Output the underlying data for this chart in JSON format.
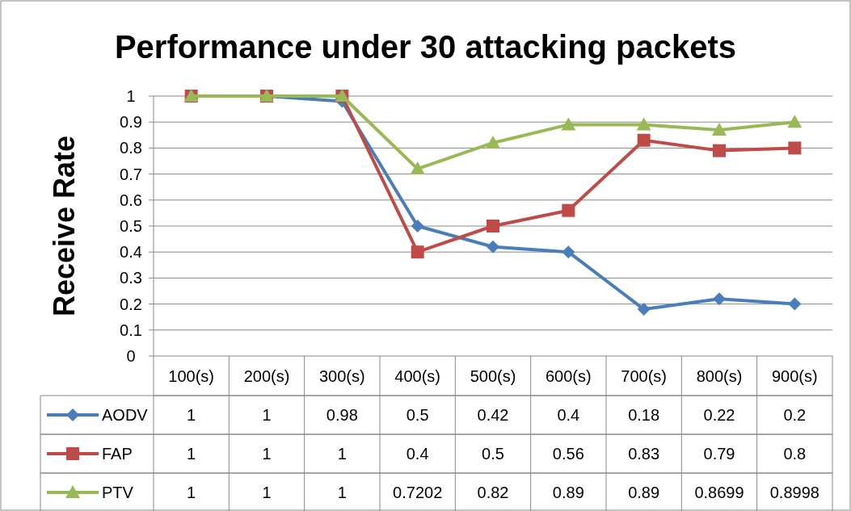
{
  "chart_data": {
    "type": "line",
    "title": "Performance under 30 attacking packets",
    "ylabel": "Receive Rate",
    "categories": [
      "100(s)",
      "200(s)",
      "300(s)",
      "400(s)",
      "500(s)",
      "600(s)",
      "700(s)",
      "800(s)",
      "900(s)"
    ],
    "ylim": [
      0,
      1
    ],
    "yticks": [
      0,
      0.1,
      0.2,
      0.3,
      0.4,
      0.5,
      0.6,
      0.7,
      0.8,
      0.9,
      1
    ],
    "grid": "y",
    "data_labels": true,
    "legend": "bottom",
    "line_style": "solid",
    "series": [
      {
        "name": "AODV",
        "color": "#4a7ebb",
        "marker": "diamond",
        "values": [
          1,
          1,
          0.98,
          0.5,
          0.42,
          0.4,
          0.18,
          0.22,
          0.2
        ]
      },
      {
        "name": "FAP",
        "color": "#be4b48",
        "marker": "square",
        "values": [
          1,
          1,
          1,
          0.4,
          0.5,
          0.56,
          0.83,
          0.79,
          0.8
        ]
      },
      {
        "name": "PTV",
        "color": "#98b954",
        "marker": "triangle",
        "values": [
          1,
          1,
          1,
          0.7202,
          0.82,
          0.89,
          0.89,
          0.8699,
          0.8998
        ]
      }
    ]
  }
}
